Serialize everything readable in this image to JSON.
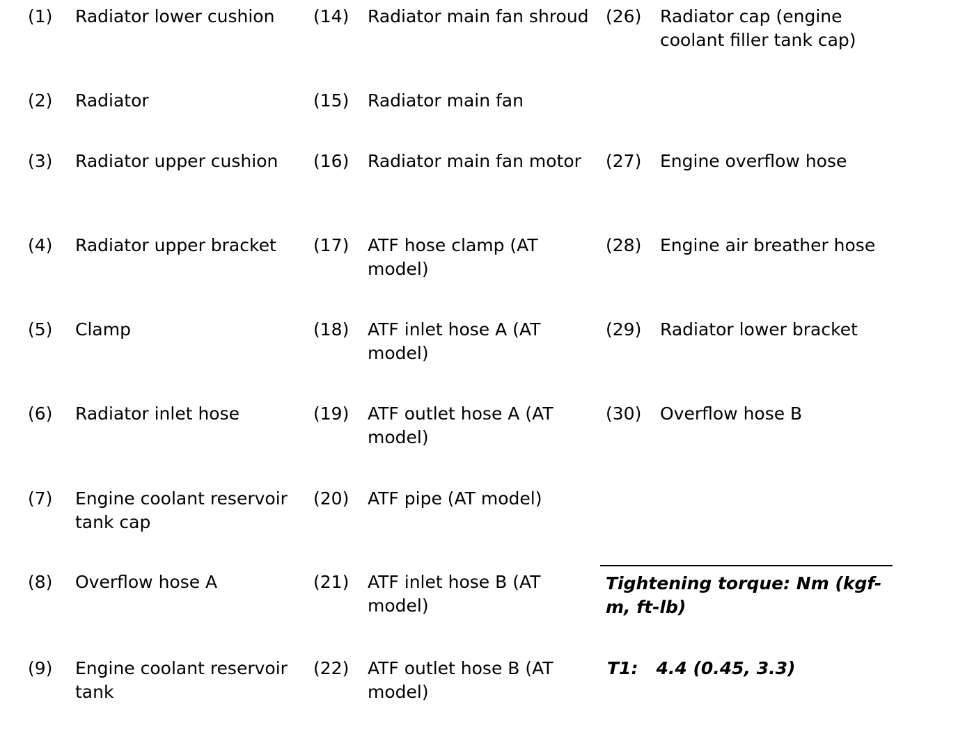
{
  "rows": [
    [
      {
        "n": "(1)",
        "t": "Radiator lower cushion"
      },
      {
        "n": "(14)",
        "t": "Radiator main fan shroud"
      },
      {
        "n": "(26)",
        "t": "Radiator cap (engine coolant filler tank cap)"
      }
    ],
    [
      {
        "n": "(2)",
        "t": "Radiator"
      },
      {
        "n": "(15)",
        "t": "Radiator main fan"
      },
      null
    ],
    [
      {
        "n": "(3)",
        "t": "Radiator upper cushion"
      },
      {
        "n": "(16)",
        "t": "Radiator main fan motor"
      },
      {
        "n": "(27)",
        "t": "Engine overflow hose"
      }
    ],
    [
      {
        "n": "(4)",
        "t": "Radiator upper bracket"
      },
      {
        "n": "(17)",
        "t": "ATF hose clamp (AT model)"
      },
      {
        "n": "(28)",
        "t": "Engine air breather hose"
      }
    ],
    [
      {
        "n": "(5)",
        "t": "Clamp"
      },
      {
        "n": "(18)",
        "t": "ATF inlet hose A (AT model)"
      },
      {
        "n": "(29)",
        "t": "Radiator lower bracket"
      }
    ],
    [
      {
        "n": "(6)",
        "t": "Radiator inlet hose"
      },
      {
        "n": "(19)",
        "t": "ATF outlet hose A (AT model)"
      },
      {
        "n": "(30)",
        "t": "Overflow hose B"
      }
    ],
    [
      {
        "n": "(7)",
        "t": "Engine coolant reservoir tank cap"
      },
      {
        "n": "(20)",
        "t": "ATF pipe (AT model)"
      },
      null
    ],
    [
      {
        "n": "(8)",
        "t": "Overflow hose A"
      },
      {
        "n": "(21)",
        "t": "ATF inlet hose B (AT model)"
      },
      null
    ],
    [
      {
        "n": "(9)",
        "t": "Engine coolant reservoir tank"
      },
      {
        "n": "(22)",
        "t": "ATF outlet hose B (AT model)"
      },
      null
    ]
  ],
  "torque": {
    "heading": "Tightening torque: Nm (kgf-m, ft-lb)",
    "t1_label": "T1:",
    "t1_value": "4.4 (0.45, 3.3)"
  }
}
